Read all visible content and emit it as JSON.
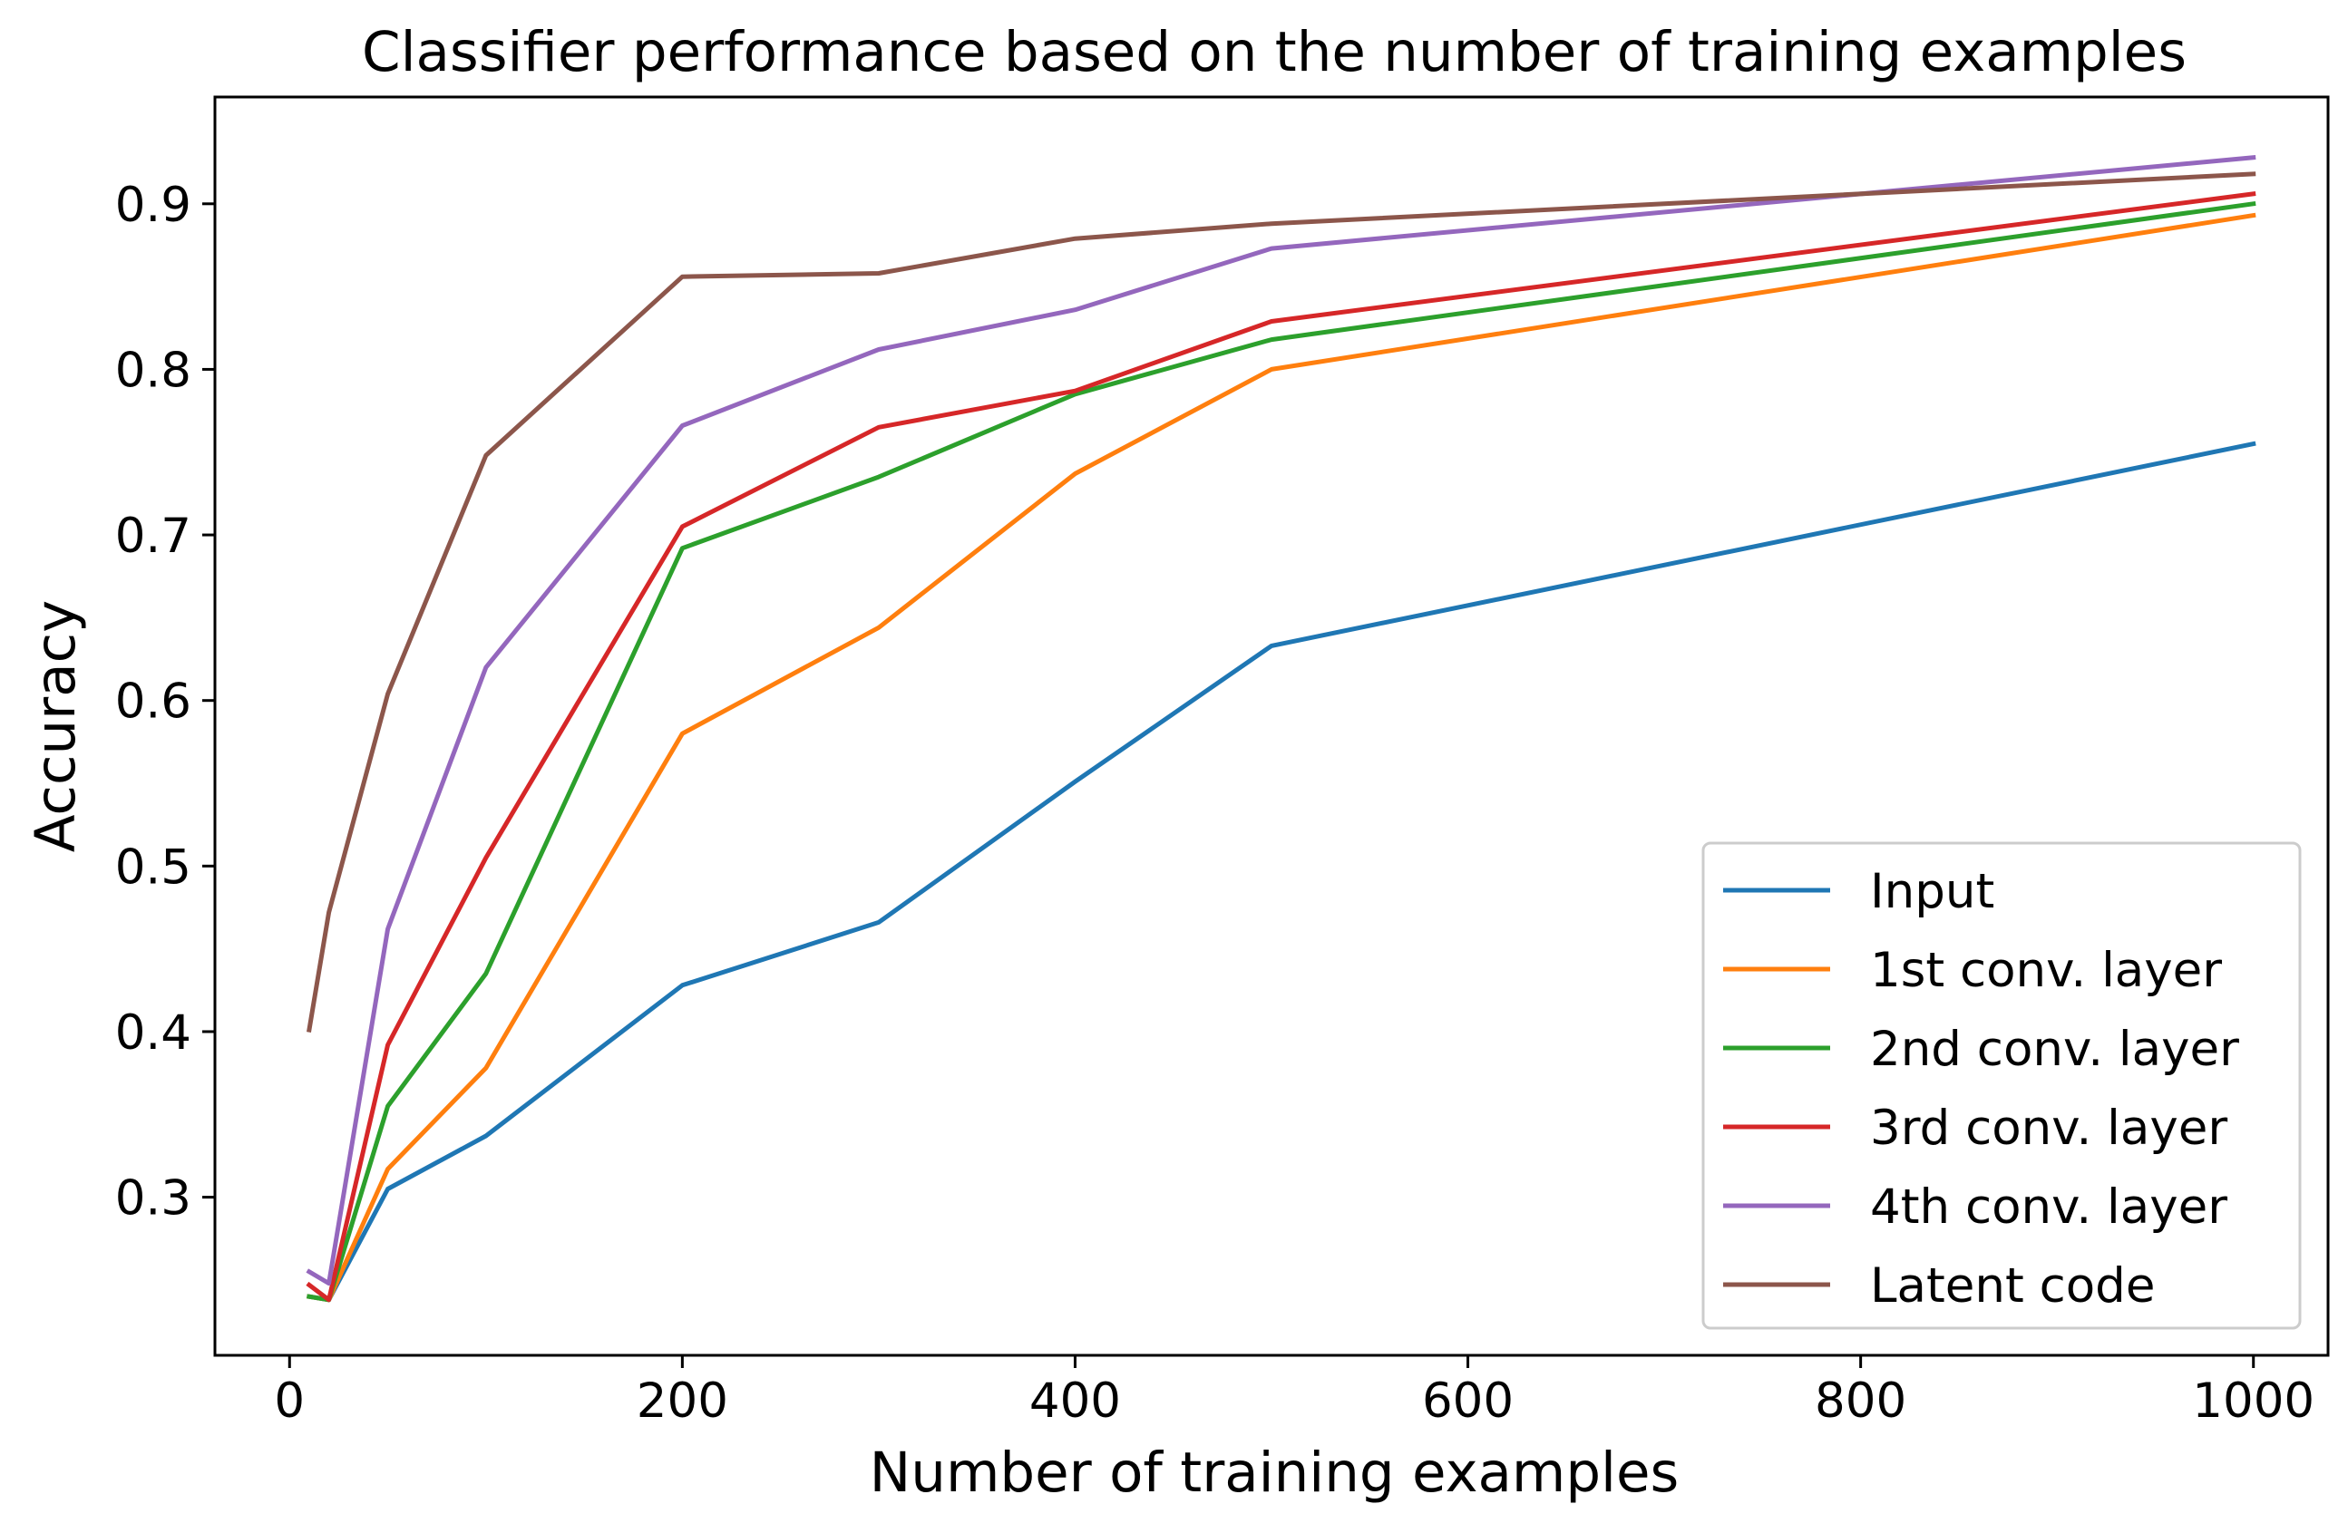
{
  "chart_data": {
    "type": "line",
    "title": "Classifier performance based on the number of training examples",
    "xlabel": "Number of training examples",
    "ylabel": "Accuracy",
    "xlim": [
      -38,
      1038
    ],
    "ylim": [
      0.2045,
      0.9645
    ],
    "x_ticks": [
      0,
      200,
      400,
      600,
      800,
      1000
    ],
    "y_ticks": [
      0.3,
      0.4,
      0.5,
      0.6,
      0.7,
      0.8,
      0.9
    ],
    "x_tick_labels": [
      "0",
      "200",
      "400",
      "600",
      "800",
      "1000"
    ],
    "y_tick_labels": [
      "0.3",
      "0.4",
      "0.5",
      "0.6",
      "0.7",
      "0.8",
      "0.9"
    ],
    "grid": false,
    "legend_position": "lower-right",
    "x": [
      10,
      20,
      50,
      100,
      200,
      300,
      400,
      500,
      1000
    ],
    "series": [
      {
        "name": "Input",
        "color": "#1f77b4",
        "values": [
          0.24,
          0.238,
          0.305,
          0.337,
          0.428,
          0.466,
          0.551,
          0.633,
          0.755
        ]
      },
      {
        "name": "1st conv. layer",
        "color": "#ff7f0e",
        "values": [
          0.24,
          0.238,
          0.317,
          0.378,
          0.58,
          0.644,
          0.737,
          0.8,
          0.893
        ]
      },
      {
        "name": "2nd conv. layer",
        "color": "#2ca02c",
        "values": [
          0.24,
          0.238,
          0.355,
          0.435,
          0.692,
          0.735,
          0.785,
          0.818,
          0.9
        ]
      },
      {
        "name": "3rd conv. layer",
        "color": "#d62728",
        "values": [
          0.247,
          0.238,
          0.392,
          0.505,
          0.705,
          0.765,
          0.787,
          0.829,
          0.906
        ]
      },
      {
        "name": "4th conv. layer",
        "color": "#9467bd",
        "values": [
          0.255,
          0.248,
          0.462,
          0.62,
          0.766,
          0.812,
          0.836,
          0.873,
          0.928
        ]
      },
      {
        "name": "Latent code",
        "color": "#8c564b",
        "values": [
          0.401,
          0.472,
          0.604,
          0.748,
          0.856,
          0.858,
          0.879,
          0.888,
          0.918
        ]
      }
    ]
  }
}
